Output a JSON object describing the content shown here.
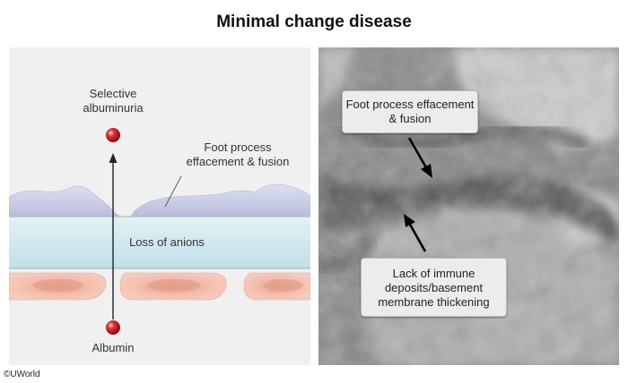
{
  "title": "Minimal change disease",
  "diagram": {
    "label_selective": "Selective albuminuria",
    "label_foot": "Foot process effacement & fusion",
    "label_anions": "Loss of anions",
    "label_albumin": "Albumin"
  },
  "micrograph": {
    "callout_top": "Foot process effacement & fusion",
    "callout_bottom": "Lack of immune deposits/basement membrane thickening"
  },
  "copyright": "©UWorld",
  "colors": {
    "foot_process": "#c7cbe4",
    "basement_membrane": "#cfe7ee",
    "endothelial_cell": "#f3bcab",
    "albumin": "#d8232a"
  }
}
